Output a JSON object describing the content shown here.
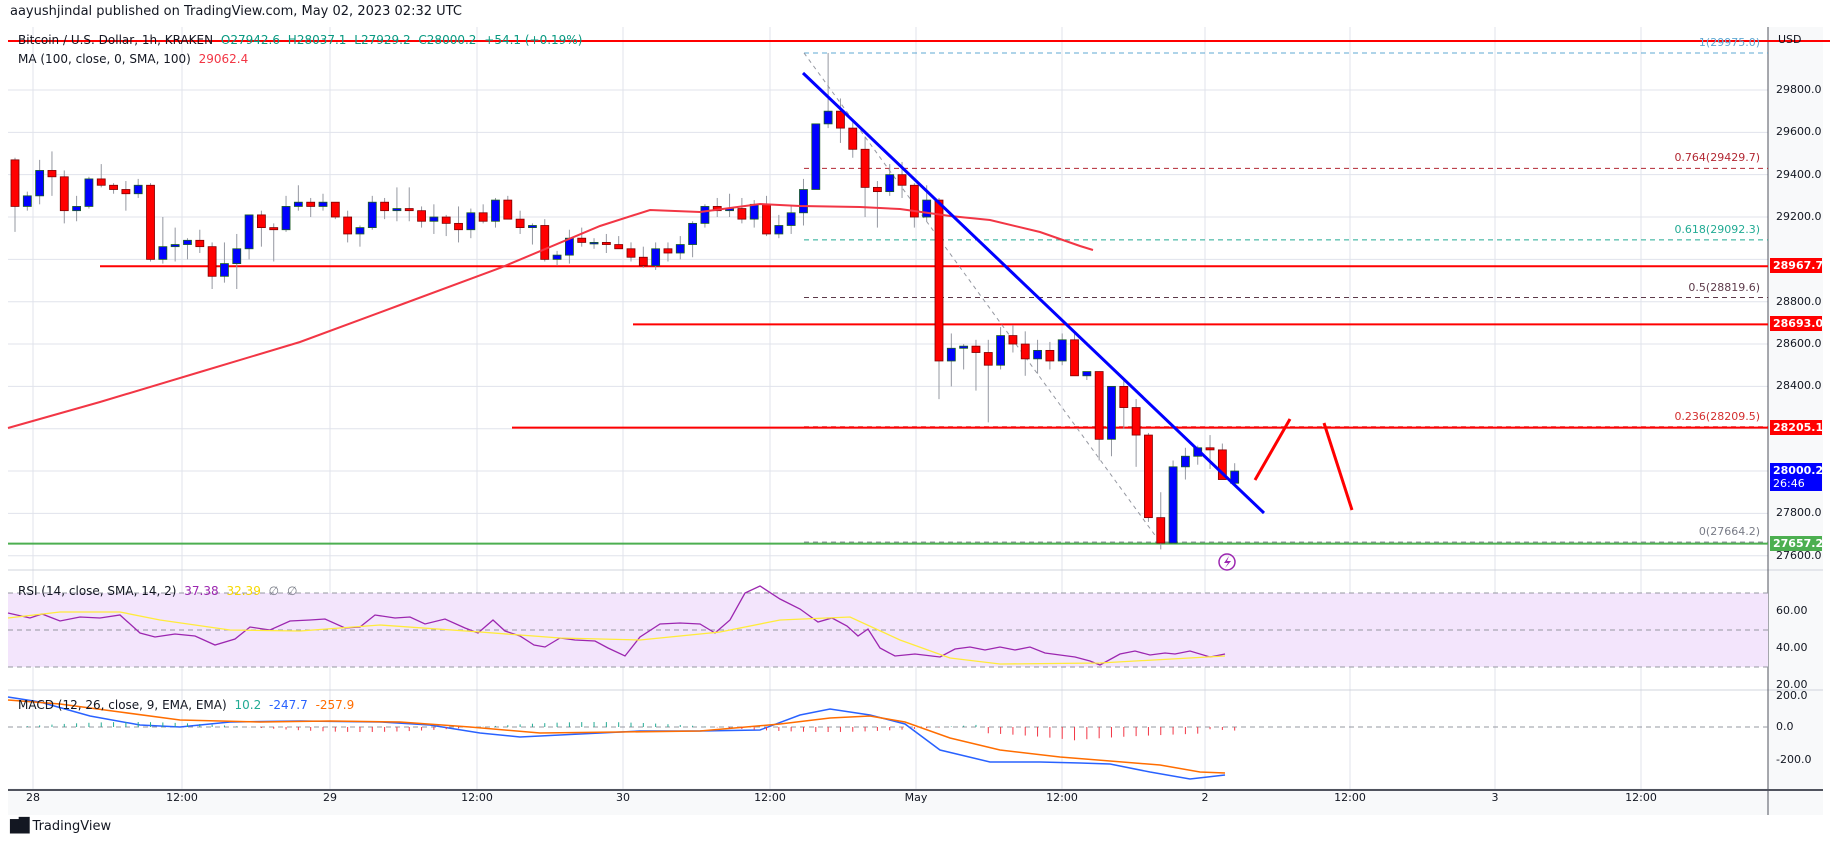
{
  "header": {
    "published": "aayushjindal published on TradingView.com, May 02, 2023 02:32 UTC"
  },
  "symbol_legend": {
    "title": "Bitcoin / U.S. Dollar, 1h, KRAKEN",
    "o": "O27942.6",
    "h": "H28037.1",
    "l": "L27929.2",
    "c": "C28000.2",
    "change": "+54.1 (+0.19%)"
  },
  "ma_legend": {
    "label": "MA (100, close, 0, SMA, 100)",
    "value": "29062.4"
  },
  "rsi_legend": {
    "label": "RSI (14, close, SMA, 14, 2)",
    "rsi": "37.38",
    "sma": "32.39",
    "extra1": "∅",
    "extra2": "∅"
  },
  "macd_legend": {
    "label": "MACD (12, 26, close, 9, EMA, EMA)",
    "hist": "10.2",
    "macd": "-247.7",
    "signal": "-257.9"
  },
  "price_axis": {
    "currency": "USD",
    "ticks": [
      "29800.0",
      "29600.0",
      "29400.0",
      "29200.0",
      "28800.0",
      "28600.0",
      "28400.0",
      "27800.0",
      "27600.0"
    ]
  },
  "price_tags": [
    {
      "value": "28967.7",
      "color": "#ff0000"
    },
    {
      "value": "28693.0",
      "color": "#ff0000"
    },
    {
      "value": "28205.1",
      "color": "#ff0000"
    },
    {
      "value": "28000.2",
      "countdown": "26:46",
      "color": "#0000ff"
    },
    {
      "value": "27657.2",
      "color": "#4caf50"
    }
  ],
  "fib_levels": [
    {
      "label": "1(29975.0)",
      "color": "#5fa8d3"
    },
    {
      "label": "0.764(29429.7)",
      "color": "#b22833"
    },
    {
      "label": "0.618(29092.3)",
      "color": "#22ab94"
    },
    {
      "label": "0.5(28819.6)",
      "color": "#5d3a4a"
    },
    {
      "label": "0.236(28209.5)",
      "color": "#d32f2f"
    },
    {
      "label": "0(27664.2)",
      "color": "#787b86"
    }
  ],
  "rsi_axis": {
    "ticks": [
      "60.00",
      "40.00",
      "20.00"
    ]
  },
  "macd_axis": {
    "ticks": [
      "200.0",
      "0.0",
      "-200.0"
    ]
  },
  "time_axis": {
    "labels": [
      "28",
      "12:00",
      "29",
      "12:00",
      "30",
      "12:00",
      "May",
      "12:00",
      "2",
      "12:00",
      "3",
      "12:00"
    ]
  },
  "footer": {
    "brand": "TradingView"
  },
  "colors": {
    "bull": "#0000ff",
    "bear": "#ff0000",
    "ma": "#f23645",
    "trendline": "#0000ff",
    "support": "#4caf50",
    "resistance": "#ff0000",
    "rsi": "#9c27b0",
    "rsi_sma": "#ffeb3b",
    "macd": "#2962ff",
    "signal": "#ff6d00"
  },
  "chart_data": {
    "type": "candlestick",
    "title": "Bitcoin / U.S. Dollar, 1h, KRAKEN",
    "ylabel": "USD",
    "ylim": [
      27550,
      30050
    ],
    "candles": [
      [
        29470,
        29480,
        29130,
        29250
      ],
      [
        29250,
        29320,
        29230,
        29300
      ],
      [
        29300,
        29470,
        29260,
        29420
      ],
      [
        29420,
        29510,
        29300,
        29390
      ],
      [
        29390,
        29420,
        29170,
        29230
      ],
      [
        29230,
        29300,
        29180,
        29250
      ],
      [
        29250,
        29390,
        29240,
        29380
      ],
      [
        29380,
        29450,
        29340,
        29350
      ],
      [
        29350,
        29360,
        29310,
        29330
      ],
      [
        29330,
        29370,
        29230,
        29310
      ],
      [
        29310,
        29380,
        29290,
        29350
      ],
      [
        29350,
        29360,
        28990,
        29000
      ],
      [
        29000,
        29200,
        28980,
        29060
      ],
      [
        29060,
        29150,
        28990,
        29070
      ],
      [
        29070,
        29100,
        29000,
        29090
      ],
      [
        29090,
        29140,
        29030,
        29060
      ],
      [
        29060,
        29080,
        28860,
        28920
      ],
      [
        28920,
        29080,
        28890,
        28980
      ],
      [
        28980,
        29120,
        28860,
        29050
      ],
      [
        29050,
        29200,
        29000,
        29210
      ],
      [
        29210,
        29230,
        29060,
        29150
      ],
      [
        29150,
        29170,
        28990,
        29140
      ],
      [
        29140,
        29300,
        29130,
        29250
      ],
      [
        29250,
        29350,
        29230,
        29270
      ],
      [
        29270,
        29290,
        29200,
        29250
      ],
      [
        29250,
        29310,
        29230,
        29270
      ],
      [
        29270,
        29270,
        29190,
        29200
      ],
      [
        29200,
        29230,
        29080,
        29120
      ],
      [
        29120,
        29160,
        29060,
        29150
      ],
      [
        29150,
        29300,
        29140,
        29270
      ],
      [
        29270,
        29290,
        29190,
        29230
      ],
      [
        29230,
        29340,
        29180,
        29240
      ],
      [
        29240,
        29340,
        29180,
        29230
      ],
      [
        29230,
        29250,
        29150,
        29180
      ],
      [
        29180,
        29260,
        29120,
        29200
      ],
      [
        29200,
        29210,
        29110,
        29170
      ],
      [
        29170,
        29250,
        29080,
        29140
      ],
      [
        29140,
        29240,
        29100,
        29220
      ],
      [
        29220,
        29260,
        29170,
        29180
      ],
      [
        29180,
        29290,
        29150,
        29280
      ],
      [
        29280,
        29300,
        29220,
        29190
      ],
      [
        29190,
        29230,
        29120,
        29150
      ],
      [
        29150,
        29170,
        29070,
        29160
      ],
      [
        29160,
        29190,
        28990,
        29000
      ],
      [
        29000,
        29040,
        28970,
        29020
      ],
      [
        29020,
        29140,
        28980,
        29100
      ],
      [
        29100,
        29150,
        29060,
        29080
      ],
      [
        29080,
        29100,
        29050,
        29080
      ],
      [
        29080,
        29120,
        29030,
        29070
      ],
      [
        29070,
        29110,
        29050,
        29050
      ],
      [
        29050,
        29080,
        28990,
        29010
      ],
      [
        29010,
        29060,
        28960,
        28970
      ],
      [
        28970,
        29080,
        28950,
        29050
      ],
      [
        29050,
        29080,
        28990,
        29030
      ],
      [
        29030,
        29110,
        29000,
        29070
      ],
      [
        29070,
        29180,
        29010,
        29170
      ],
      [
        29170,
        29260,
        29150,
        29250
      ],
      [
        29250,
        29290,
        29200,
        29230
      ],
      [
        29230,
        29310,
        29200,
        29240
      ],
      [
        29240,
        29290,
        29170,
        29190
      ],
      [
        29190,
        29280,
        29150,
        29260
      ],
      [
        29260,
        29300,
        29110,
        29120
      ],
      [
        29120,
        29210,
        29100,
        29160
      ],
      [
        29160,
        29250,
        29120,
        29220
      ],
      [
        29220,
        29380,
        29160,
        29330
      ],
      [
        29330,
        29640,
        29330,
        29640
      ],
      [
        29640,
        29975,
        29620,
        29700
      ],
      [
        29700,
        29760,
        29550,
        29620
      ],
      [
        29620,
        29660,
        29480,
        29520
      ],
      [
        29520,
        29580,
        29200,
        29340
      ],
      [
        29340,
        29370,
        29150,
        29320
      ],
      [
        29320,
        29450,
        29300,
        29400
      ],
      [
        29400,
        29460,
        29290,
        29350
      ],
      [
        29350,
        29360,
        29150,
        29200
      ],
      [
        29200,
        29350,
        29180,
        29280
      ],
      [
        29280,
        29290,
        28340,
        28520
      ],
      [
        28520,
        28650,
        28400,
        28580
      ],
      [
        28580,
        28600,
        28480,
        28590
      ],
      [
        28590,
        28620,
        28380,
        28560
      ],
      [
        28560,
        28620,
        28230,
        28500
      ],
      [
        28500,
        28680,
        28480,
        28640
      ],
      [
        28640,
        28690,
        28560,
        28600
      ],
      [
        28600,
        28660,
        28450,
        28530
      ],
      [
        28530,
        28620,
        28460,
        28570
      ],
      [
        28570,
        28610,
        28480,
        28520
      ],
      [
        28520,
        28650,
        28500,
        28620
      ],
      [
        28620,
        28660,
        28450,
        28450
      ],
      [
        28450,
        28470,
        28430,
        28470
      ],
      [
        28470,
        28470,
        28050,
        28150
      ],
      [
        28150,
        28400,
        28070,
        28400
      ],
      [
        28400,
        28440,
        28200,
        28300
      ],
      [
        28300,
        28340,
        28020,
        28170
      ],
      [
        28170,
        28180,
        27760,
        27780
      ],
      [
        27780,
        27900,
        27630,
        27660
      ],
      [
        27660,
        28050,
        27657,
        28020
      ],
      [
        28020,
        28110,
        27960,
        28070
      ],
      [
        28070,
        28120,
        28030,
        28110
      ],
      [
        28110,
        28170,
        28010,
        28100
      ],
      [
        28100,
        28130,
        27960,
        27960
      ],
      [
        27942.6,
        28037.1,
        27929.2,
        28000.2
      ]
    ]
  }
}
